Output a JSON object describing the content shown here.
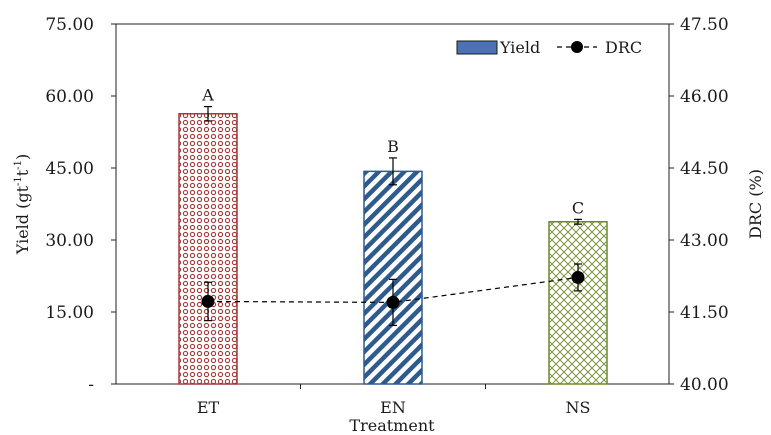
{
  "chart_data": {
    "type": "bar",
    "title": "",
    "xlabel": "Treatment",
    "categories": [
      "ET",
      "EN",
      "NS"
    ],
    "y_left": {
      "label_main": "Yield (gt",
      "label_sup1": "-1",
      "label_mid": "t",
      "label_sup2": "-1",
      "label_end": ")",
      "range": [
        0,
        75
      ],
      "tick_labels": [
        "-",
        "15.00",
        "30.00",
        "45.00",
        "60.00",
        "75.00"
      ]
    },
    "y_right": {
      "label": "DRC (%)",
      "range": [
        40,
        47.5
      ],
      "tick_labels": [
        "40.00",
        "41.50",
        "43.00",
        "44.50",
        "46.00",
        "47.50"
      ]
    },
    "series": [
      {
        "name": "Yield",
        "kind": "bar",
        "axis": "left",
        "values": [
          56.3,
          44.3,
          33.8
        ],
        "errors": [
          1.5,
          2.8,
          0.5
        ],
        "letters": [
          "A",
          "B",
          "C"
        ],
        "colors": [
          "#a23a3a",
          "#2e5a8c",
          "#6e8a2a"
        ],
        "patterns": [
          "dots",
          "diagonal-stripes",
          "crosshatch"
        ]
      },
      {
        "name": "DRC",
        "kind": "line",
        "axis": "right",
        "values": [
          41.72,
          41.7,
          42.22
        ],
        "errors": [
          0.4,
          0.48,
          0.28
        ],
        "line_style": "dashed",
        "marker": "circle",
        "color": "#000000"
      }
    ],
    "legend": {
      "position": "top-right",
      "items": [
        "Yield",
        "DRC"
      ],
      "swatch_color": "#4a72b4"
    },
    "grid": false
  }
}
